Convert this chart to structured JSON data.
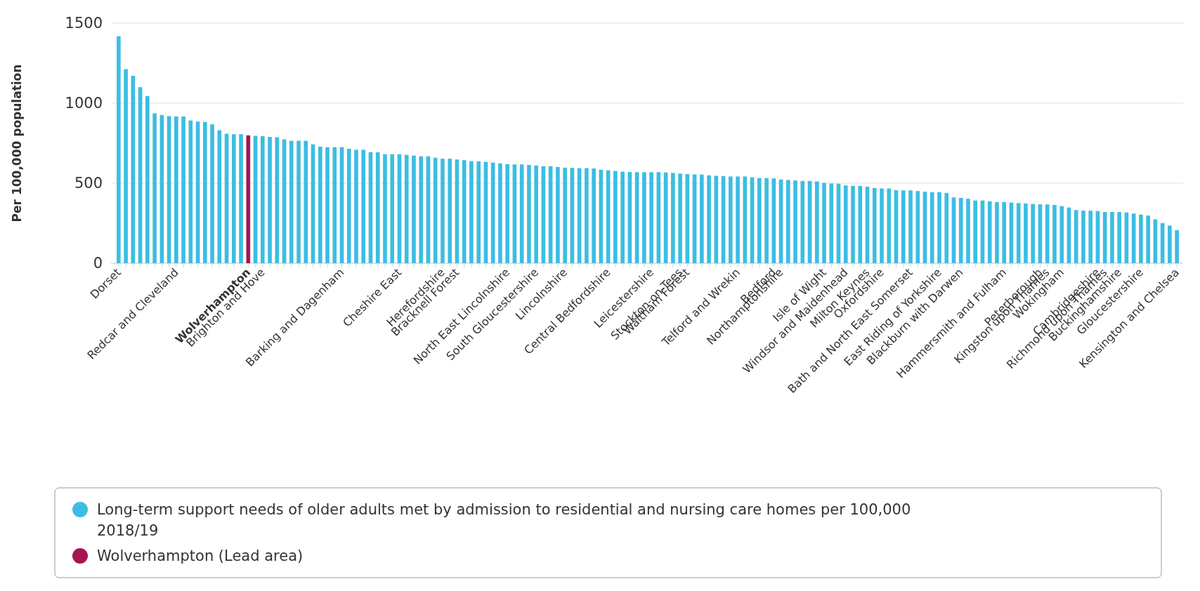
{
  "chart_data": {
    "type": "bar",
    "ylabel": "Per 100,000 population",
    "grid": "y",
    "legend": "bottom",
    "ylim": [
      0,
      1500
    ],
    "yticks": [
      0,
      500,
      1000,
      1500
    ],
    "categories": [
      "Dorset",
      null,
      null,
      null,
      null,
      null,
      null,
      null,
      "Redcar and Cleveland",
      null,
      null,
      null,
      null,
      null,
      null,
      null,
      null,
      null,
      "Wolverhampton",
      null,
      "Brighton and Hove",
      null,
      null,
      null,
      null,
      null,
      null,
      null,
      null,
      null,
      null,
      "Barking and Dagenham",
      null,
      null,
      null,
      null,
      null,
      null,
      null,
      "Cheshire East",
      null,
      null,
      null,
      null,
      null,
      "Herefordshire",
      null,
      "Bracknell Forest",
      null,
      null,
      null,
      null,
      null,
      null,
      "North East Lincolnshire",
      null,
      null,
      null,
      "South Gloucestershire",
      null,
      null,
      null,
      "Lincolnshire",
      null,
      null,
      null,
      null,
      null,
      "Central Bedfordshire",
      null,
      null,
      null,
      null,
      null,
      "Leicestershire",
      null,
      null,
      null,
      "Stockton-on-Tees",
      "Waltham Forest",
      null,
      null,
      null,
      null,
      null,
      null,
      "Telford and Wrekin",
      null,
      null,
      null,
      null,
      "Bedford",
      "Northamptonshire",
      null,
      null,
      null,
      null,
      null,
      "Isle of Wight",
      null,
      null,
      "Windsor and Maidenhead",
      null,
      null,
      "Milton Keynes",
      null,
      "Oxfordshire",
      null,
      null,
      null,
      "Bath and North East Somerset",
      null,
      null,
      null,
      "East Riding of Yorkshire",
      null,
      null,
      "Blackburn with Darwen",
      null,
      null,
      null,
      null,
      null,
      "Hammersmith and Fulham",
      null,
      null,
      null,
      null,
      "Peterborough",
      "Kingston upon Thames",
      null,
      "Wokingham",
      null,
      null,
      null,
      null,
      "Cambridgeshire",
      "Richmond upon Thames",
      null,
      "Buckinghamshire",
      null,
      null,
      "Gloucestershire",
      null,
      null,
      null,
      null,
      "Kensington and Chelsea"
    ],
    "series": [
      {
        "name": "Long-term support needs of older adults met by admission to residential and nursing care homes per 100,000 2018/19",
        "color": "#3cbde3",
        "values": [
          1418,
          1213,
          1171,
          1100,
          1044,
          937,
          926,
          919,
          917,
          917,
          892,
          885,
          883,
          868,
          831,
          809,
          806,
          806,
          null,
          796,
          794,
          789,
          787,
          774,
          765,
          765,
          765,
          743,
          728,
          725,
          725,
          725,
          715,
          709,
          709,
          694,
          693,
          681,
          681,
          681,
          677,
          673,
          668,
          668,
          659,
          653,
          653,
          648,
          644,
          638,
          636,
          633,
          629,
          624,
          619,
          617,
          617,
          614,
          611,
          606,
          606,
          601,
          597,
          596,
          594,
          594,
          592,
          584,
          581,
          576,
          572,
          570,
          569,
          569,
          569,
          569,
          567,
          564,
          560,
          557,
          555,
          554,
          549,
          546,
          544,
          542,
          542,
          542,
          537,
          532,
          532,
          530,
          523,
          520,
          517,
          514,
          514,
          511,
          502,
          498,
          497,
          486,
          483,
          483,
          478,
          470,
          467,
          467,
          456,
          455,
          455,
          451,
          447,
          444,
          444,
          439,
          411,
          408,
          403,
          392,
          392,
          387,
          382,
          382,
          379,
          376,
          373,
          370,
          368,
          367,
          364,
          357,
          348,
          332,
          329,
          328,
          326,
          320,
          320,
          320,
          317,
          310,
          304,
          298,
          274,
          251,
          235,
          207
        ]
      },
      {
        "name": "Wolverhampton (Lead area)",
        "color": "#a51551",
        "values": [
          null,
          null,
          null,
          null,
          null,
          null,
          null,
          null,
          null,
          null,
          null,
          null,
          null,
          null,
          null,
          null,
          null,
          null,
          799,
          null,
          null,
          null,
          null,
          null,
          null,
          null,
          null,
          null,
          null,
          null,
          null,
          null,
          null,
          null,
          null,
          null,
          null,
          null,
          null,
          null,
          null,
          null,
          null,
          null,
          null,
          null,
          null,
          null,
          null,
          null,
          null,
          null,
          null,
          null,
          null,
          null,
          null,
          null,
          null,
          null,
          null,
          null,
          null,
          null,
          null,
          null,
          null,
          null,
          null,
          null,
          null,
          null,
          null,
          null,
          null,
          null,
          null,
          null,
          null,
          null,
          null,
          null,
          null,
          null,
          null,
          null,
          null,
          null,
          null,
          null,
          null,
          null,
          null,
          null,
          null,
          null,
          null,
          null,
          null,
          null,
          null,
          null,
          null,
          null,
          null,
          null,
          null,
          null,
          null,
          null,
          null,
          null,
          null,
          null,
          null,
          null,
          null,
          null,
          null,
          null,
          null,
          null,
          null,
          null,
          null,
          null,
          null,
          null,
          null,
          null,
          null,
          null,
          null,
          null,
          null,
          null,
          null,
          null,
          null,
          null,
          null,
          null,
          null,
          null,
          null,
          null,
          null,
          null
        ]
      }
    ]
  }
}
